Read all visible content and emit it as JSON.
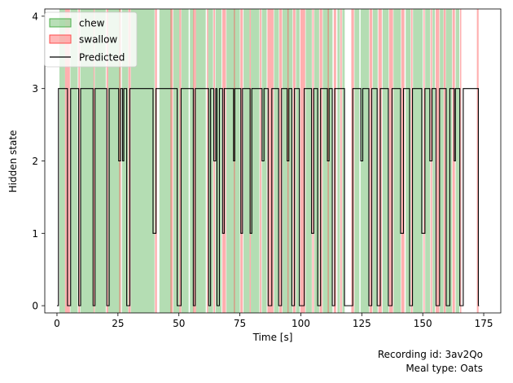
{
  "chart_data": {
    "type": "line",
    "xlabel": "Time [s]",
    "ylabel": "Hidden state",
    "xlim": [
      -5,
      182
    ],
    "ylim": [
      -0.1,
      4.1
    ],
    "xticks": [
      0,
      25,
      50,
      75,
      100,
      125,
      150,
      175
    ],
    "yticks": [
      0,
      1,
      2,
      3,
      4
    ],
    "grid": false,
    "legend_position": "top-left",
    "legend": [
      {
        "label": "chew",
        "kind": "patch",
        "color": "#4daf4a"
      },
      {
        "label": "swallow",
        "kind": "patch",
        "color": "#ff4d4d"
      },
      {
        "label": "Predicted",
        "kind": "line",
        "color": "#000000"
      }
    ],
    "chew_intervals": [
      [
        1,
        3.3
      ],
      [
        5.5,
        8.5
      ],
      [
        9.6,
        15
      ],
      [
        15.5,
        20
      ],
      [
        21,
        26
      ],
      [
        26.6,
        29.2
      ],
      [
        30.3,
        40
      ],
      [
        42,
        47
      ],
      [
        47.7,
        50.2
      ],
      [
        51,
        54
      ],
      [
        54.5,
        56
      ],
      [
        57,
        61
      ],
      [
        62,
        64
      ],
      [
        65,
        67.5
      ],
      [
        69.5,
        75
      ],
      [
        76.5,
        79
      ],
      [
        79.5,
        83
      ],
      [
        84,
        86
      ],
      [
        89,
        91
      ],
      [
        92.5,
        96.6
      ],
      [
        98,
        99.5
      ],
      [
        102,
        104.5
      ],
      [
        105.5,
        107.5
      ],
      [
        109,
        113
      ],
      [
        115,
        116
      ],
      [
        117,
        118
      ],
      [
        122,
        124
      ],
      [
        124.5,
        128
      ],
      [
        129.5,
        131.5
      ],
      [
        133.5,
        136
      ],
      [
        138,
        141
      ],
      [
        143,
        145
      ],
      [
        146,
        150
      ],
      [
        151,
        153
      ],
      [
        154,
        155
      ],
      [
        157,
        158.5
      ],
      [
        159.5,
        162
      ],
      [
        163.5,
        165
      ]
    ],
    "swallow_intervals": [
      [
        3.3,
        5.3
      ],
      [
        8.8,
        9.4
      ],
      [
        15,
        15.4
      ],
      [
        20.3,
        21
      ],
      [
        25.5,
        26.2
      ],
      [
        29.3,
        30.2
      ],
      [
        40.2,
        41
      ],
      [
        46.5,
        47.5
      ],
      [
        50.2,
        50.9
      ],
      [
        55.8,
        57
      ],
      [
        61.5,
        62
      ],
      [
        64.2,
        64.8
      ],
      [
        67.8,
        69.3
      ],
      [
        72.5,
        73
      ],
      [
        75.2,
        76.2
      ],
      [
        79,
        79.5
      ],
      [
        83.2,
        83.8
      ],
      [
        86.3,
        88.8
      ],
      [
        91.2,
        92.3
      ],
      [
        94.5,
        95
      ],
      [
        96.8,
        97.8
      ],
      [
        99.8,
        101.8
      ],
      [
        104.7,
        105.3
      ],
      [
        107.7,
        108.8
      ],
      [
        111,
        111.5
      ],
      [
        113.5,
        114.5
      ],
      [
        116.2,
        116.8
      ],
      [
        120.7,
        121.8
      ],
      [
        128.2,
        129.3
      ],
      [
        131.8,
        133.2
      ],
      [
        136.2,
        137.8
      ],
      [
        141.2,
        142.5
      ],
      [
        145.2,
        145.8
      ],
      [
        150.3,
        150.8
      ],
      [
        153.2,
        153.8
      ],
      [
        155.3,
        156.8
      ],
      [
        158.6,
        159.4
      ],
      [
        162.2,
        163.2
      ],
      [
        165.3,
        165.8
      ],
      [
        172.2,
        172.9
      ]
    ],
    "predicted_steps": [
      [
        0,
        0
      ],
      [
        0.6,
        3
      ],
      [
        4.3,
        0
      ],
      [
        5.6,
        3
      ],
      [
        8.9,
        0
      ],
      [
        9.7,
        3
      ],
      [
        14.8,
        0
      ],
      [
        15.6,
        3
      ],
      [
        20.4,
        0
      ],
      [
        21.4,
        3
      ],
      [
        25.3,
        2
      ],
      [
        26.1,
        3
      ],
      [
        26.9,
        2
      ],
      [
        27.4,
        3
      ],
      [
        28.6,
        0
      ],
      [
        29.9,
        3
      ],
      [
        39.4,
        1
      ],
      [
        40.6,
        3
      ],
      [
        49.3,
        0
      ],
      [
        50.9,
        3
      ],
      [
        55.9,
        0
      ],
      [
        56.7,
        3
      ],
      [
        62.2,
        0
      ],
      [
        63,
        3
      ],
      [
        64.3,
        2
      ],
      [
        65.1,
        3
      ],
      [
        65.6,
        0
      ],
      [
        66.6,
        3
      ],
      [
        67.9,
        1
      ],
      [
        68.6,
        3
      ],
      [
        72.4,
        2
      ],
      [
        72.9,
        3
      ],
      [
        75.4,
        1
      ],
      [
        76.1,
        3
      ],
      [
        79.2,
        1
      ],
      [
        79.9,
        3
      ],
      [
        84.1,
        2
      ],
      [
        84.9,
        3
      ],
      [
        86.6,
        0
      ],
      [
        88.1,
        3
      ],
      [
        90.9,
        0
      ],
      [
        92.1,
        3
      ],
      [
        94.4,
        2
      ],
      [
        95.1,
        3
      ],
      [
        96.3,
        0
      ],
      [
        97.4,
        3
      ],
      [
        99.4,
        0
      ],
      [
        101.4,
        3
      ],
      [
        104.4,
        1
      ],
      [
        105.3,
        3
      ],
      [
        106.9,
        0
      ],
      [
        108.1,
        3
      ],
      [
        110.9,
        2
      ],
      [
        111.6,
        3
      ],
      [
        112.9,
        0
      ],
      [
        113.9,
        3
      ],
      [
        117.9,
        0
      ],
      [
        121.3,
        3
      ],
      [
        124.6,
        2
      ],
      [
        125.4,
        3
      ],
      [
        127.9,
        0
      ],
      [
        129.1,
        3
      ],
      [
        131.3,
        0
      ],
      [
        132.6,
        3
      ],
      [
        135.9,
        0
      ],
      [
        137.4,
        3
      ],
      [
        140.9,
        1
      ],
      [
        142.1,
        3
      ],
      [
        144.6,
        0
      ],
      [
        145.8,
        3
      ],
      [
        149.6,
        1
      ],
      [
        150.9,
        3
      ],
      [
        152.9,
        2
      ],
      [
        153.8,
        3
      ],
      [
        155.4,
        0
      ],
      [
        156.9,
        3
      ],
      [
        159.6,
        0
      ],
      [
        161.1,
        3
      ],
      [
        162.9,
        2
      ],
      [
        163.4,
        3
      ],
      [
        165.2,
        0
      ],
      [
        166.6,
        3
      ],
      [
        172.8,
        0
      ]
    ],
    "predicted_end": 173.1
  },
  "caption": {
    "recording": "Recording id: 3av2Qo",
    "meal": "Meal type: Oats"
  },
  "colors": {
    "chew": "#4daf4a",
    "swallow": "#ff4d4d",
    "predicted": "#000000"
  }
}
